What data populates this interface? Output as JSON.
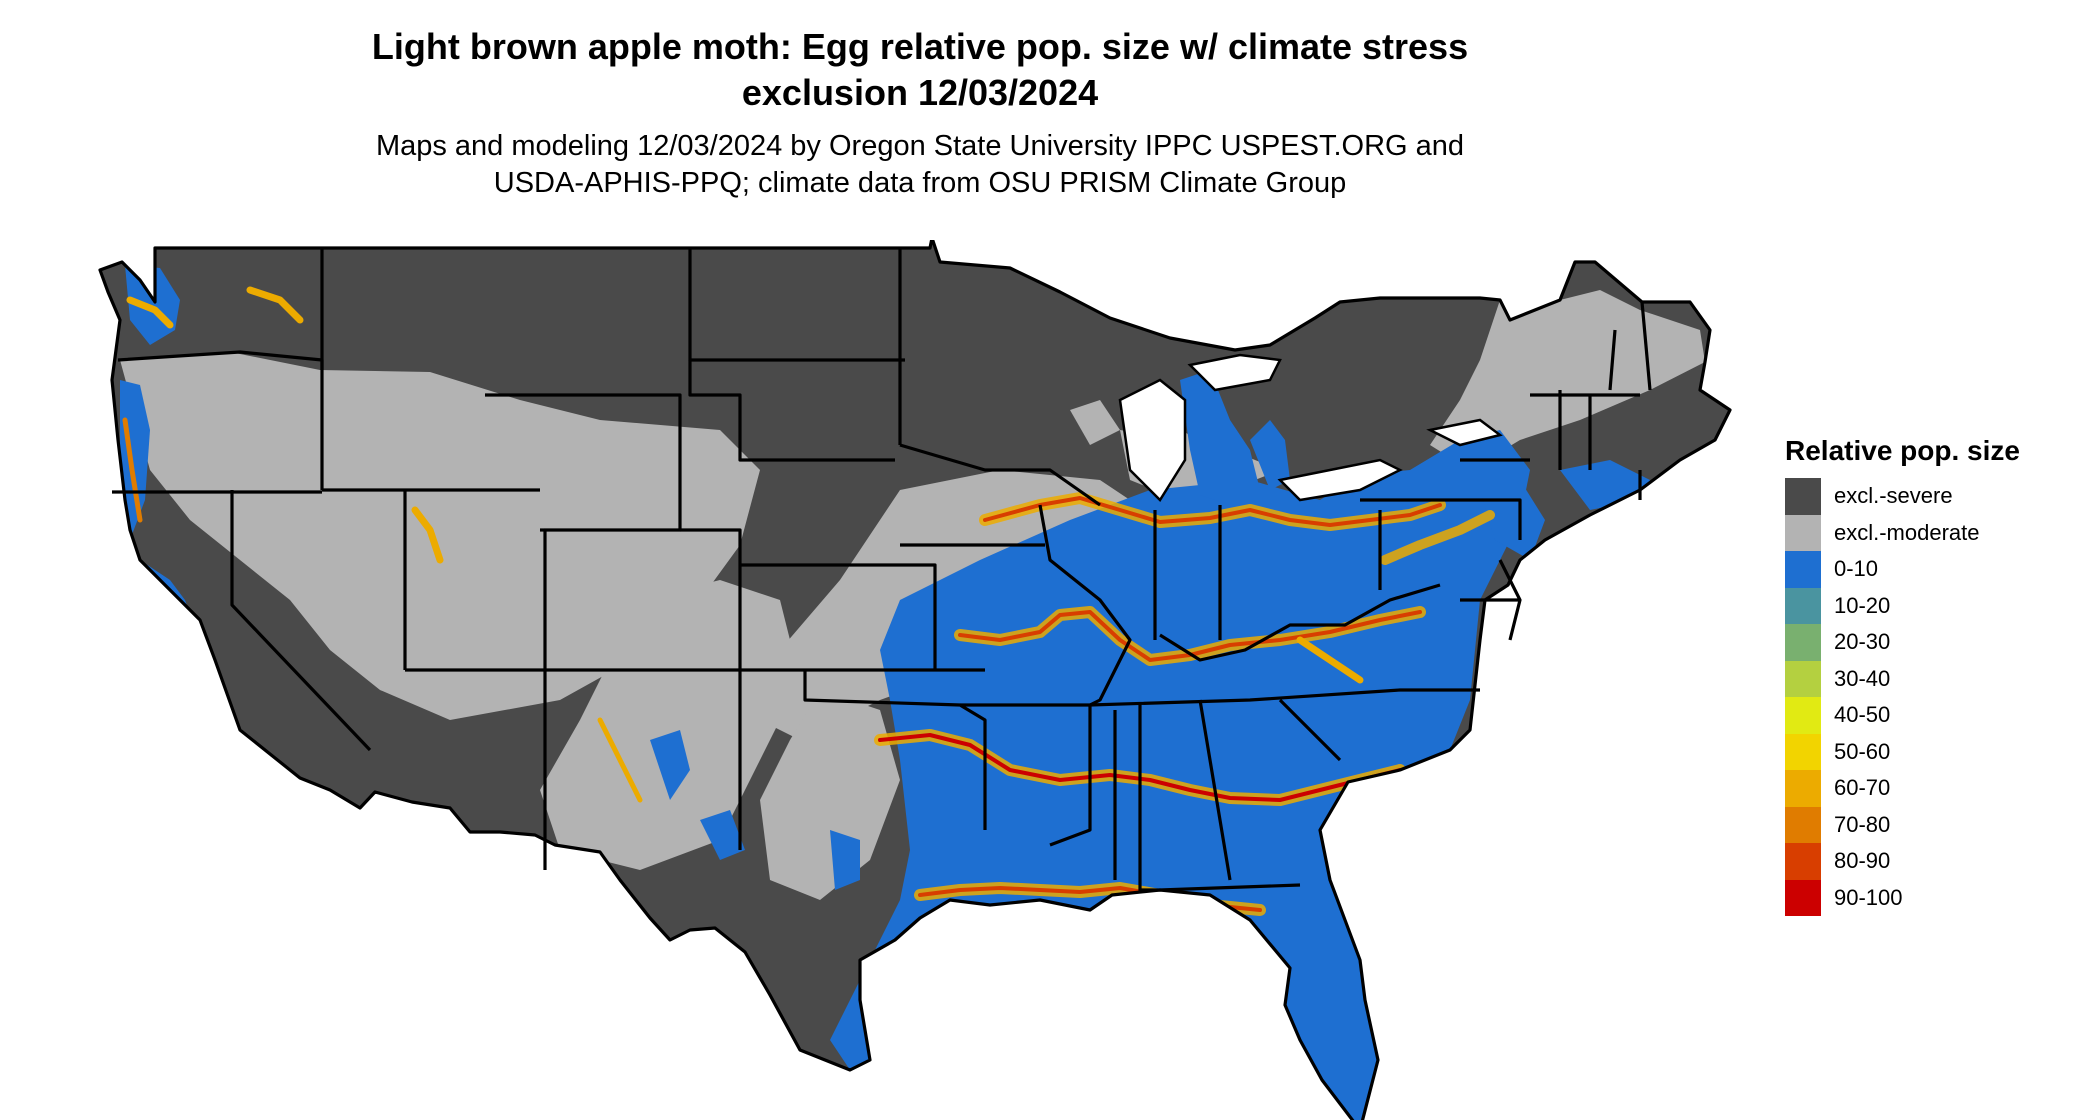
{
  "title_line1": "Light brown apple moth: Egg relative pop. size w/ climate stress",
  "title_line2": "exclusion 12/03/2024",
  "subtitle_line1": "Maps and modeling 12/03/2024 by Oregon State University IPPC USPEST.ORG and",
  "subtitle_line2": "USDA-APHIS-PPQ; climate data from OSU PRISM Climate Group",
  "legend": {
    "title": "Relative pop. size",
    "items": [
      {
        "label": "excl.-severe",
        "color": "#4a4a4a"
      },
      {
        "label": "excl.-moderate",
        "color": "#b3b3b3"
      },
      {
        "label": "0-10",
        "color": "#1e6fd1"
      },
      {
        "label": "10-20",
        "color": "#4a94a0"
      },
      {
        "label": "20-30",
        "color": "#79b06f"
      },
      {
        "label": "30-40",
        "color": "#b4d040"
      },
      {
        "label": "40-50",
        "color": "#e1ea13"
      },
      {
        "label": "50-60",
        "color": "#f2d400"
      },
      {
        "label": "60-70",
        "color": "#ecab00"
      },
      {
        "label": "70-80",
        "color": "#e07c00"
      },
      {
        "label": "80-90",
        "color": "#d83e00"
      },
      {
        "label": "90-100",
        "color": "#cc0000"
      }
    ]
  },
  "colors": {
    "severe": "#4a4a4a",
    "moderate": "#b3b3b3",
    "low": "#1e6fd1",
    "mid": "#f2d400",
    "high": "#e07c00",
    "peak": "#cc0000",
    "border": "#000000"
  }
}
